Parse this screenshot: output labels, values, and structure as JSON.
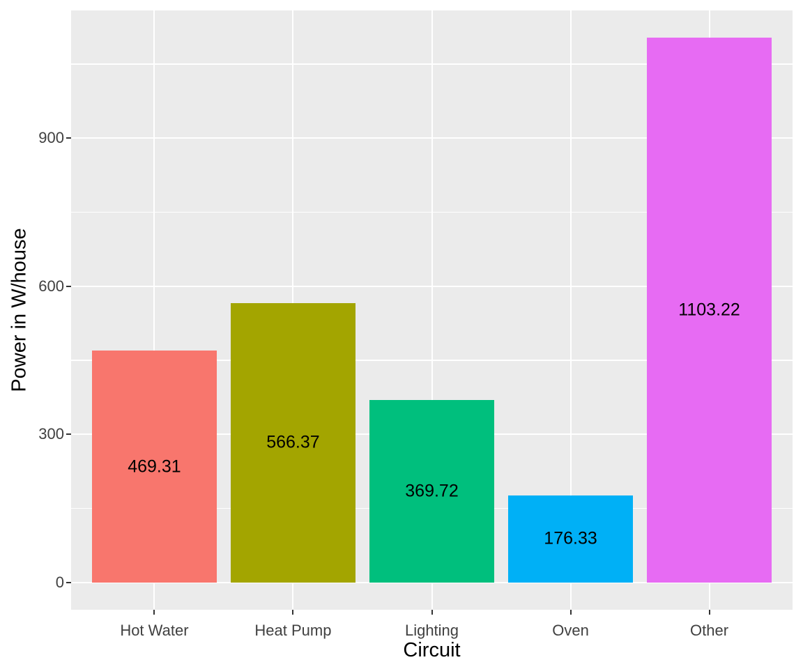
{
  "chart_data": {
    "type": "bar",
    "title": "",
    "xlabel": "Circuit",
    "ylabel": "Power in W/house",
    "categories": [
      "Hot Water",
      "Heat Pump",
      "Lighting",
      "Oven",
      "Other"
    ],
    "values": [
      469.31,
      566.37,
      369.72,
      176.33,
      1103.22
    ],
    "value_labels": [
      "469.31",
      "566.37",
      "369.72",
      "176.33",
      "1103.22"
    ],
    "bar_colors": [
      "#F8766D",
      "#A3A500",
      "#00BF7D",
      "#00B0F6",
      "#E76BF3"
    ],
    "yticks": [
      0,
      300,
      600,
      900
    ],
    "ytick_labels": [
      "0",
      "300",
      "600",
      "900"
    ],
    "ylim": [
      -55.2,
      1158.4
    ],
    "grid": "major and minor horizontal white lines, major vertical white line at each category center",
    "legend": "none",
    "colors": {
      "panel_bg": "#EBEBEB",
      "gridline": "#FFFFFF",
      "tick_mark": "#333333",
      "tick_label": "#404040",
      "axis_title": "#000000",
      "value_label": "#000000"
    }
  }
}
